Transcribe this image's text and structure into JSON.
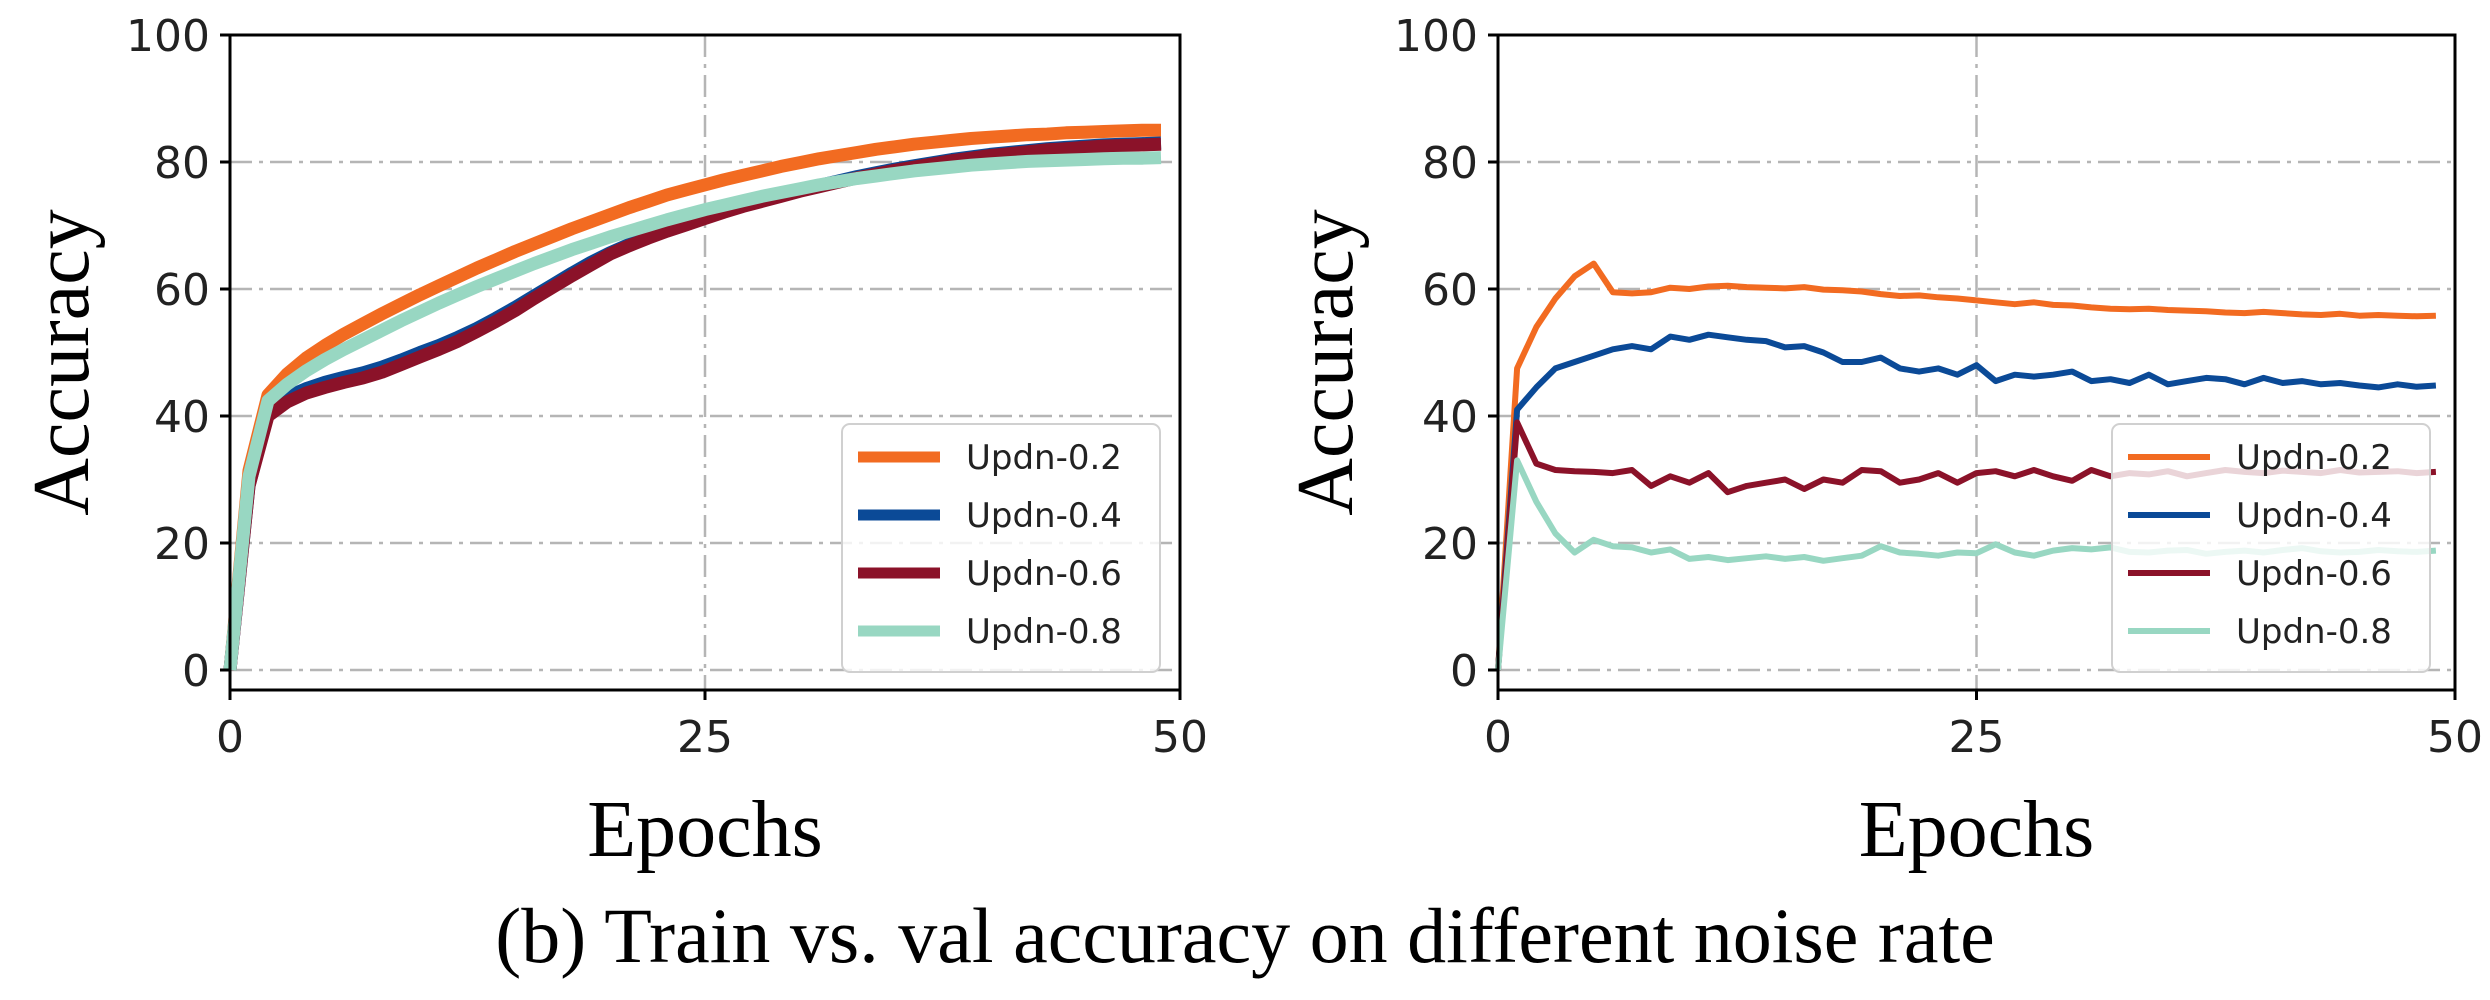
{
  "caption": "(b) Train vs. val accuracy on different noise rate",
  "chart_data": [
    {
      "type": "line",
      "xlabel": "Epochs",
      "ylabel": "Accuracy",
      "xlim": [
        0,
        50
      ],
      "ylim": [
        0,
        100
      ],
      "xticks": [
        "0",
        "25",
        "50"
      ],
      "yticks": [
        "0",
        "20",
        "40",
        "60",
        "80",
        "100"
      ],
      "grid": true,
      "legend_position": "lower-right",
      "x": [
        0,
        1,
        2,
        3,
        4,
        5,
        6,
        7,
        8,
        9,
        10,
        11,
        12,
        13,
        14,
        15,
        16,
        17,
        18,
        19,
        20,
        21,
        22,
        23,
        24,
        25,
        26,
        27,
        28,
        29,
        30,
        31,
        32,
        33,
        34,
        35,
        36,
        37,
        38,
        39,
        40,
        41,
        42,
        43,
        44,
        45,
        46,
        47,
        48,
        49
      ],
      "series": [
        {
          "name": "Updn-0.2",
          "color": "#f26b21",
          "values": [
            0,
            31.4,
            43.3,
            46.6,
            49.1,
            51.1,
            52.9,
            54.5,
            56.1,
            57.6,
            59.1,
            60.5,
            61.9,
            63.3,
            64.6,
            65.9,
            67.1,
            68.3,
            69.5,
            70.6,
            71.7,
            72.8,
            73.8,
            74.8,
            75.6,
            76.4,
            77.2,
            77.9,
            78.6,
            79.3,
            79.9,
            80.5,
            81.0,
            81.5,
            82.0,
            82.4,
            82.8,
            83.1,
            83.4,
            83.7,
            83.9,
            84.1,
            84.3,
            84.4,
            84.6,
            84.7,
            84.8,
            84.9,
            85.0,
            85.0
          ]
        },
        {
          "name": "Updn-0.4",
          "color": "#0b4a97",
          "values": [
            0,
            29.0,
            40.5,
            43.0,
            44.3,
            45.3,
            46.1,
            46.8,
            47.7,
            48.8,
            50.0,
            51.1,
            52.4,
            53.8,
            55.4,
            57.1,
            58.9,
            60.7,
            62.5,
            64.2,
            65.7,
            67.0,
            68.2,
            69.3,
            70.3,
            71.3,
            72.3,
            73.2,
            74.0,
            74.8,
            75.6,
            76.3,
            77.0,
            77.7,
            78.3,
            78.9,
            79.4,
            79.9,
            80.4,
            80.8,
            81.2,
            81.5,
            81.8,
            82.1,
            82.3,
            82.5,
            82.7,
            82.8,
            82.9,
            83.0
          ]
        },
        {
          "name": "Updn-0.6",
          "color": "#8b1229",
          "values": [
            0,
            29.0,
            40.0,
            42.2,
            43.6,
            44.5,
            45.3,
            46.0,
            46.9,
            48.1,
            49.3,
            50.5,
            51.8,
            53.3,
            54.9,
            56.6,
            58.5,
            60.3,
            62.1,
            63.8,
            65.5,
            66.8,
            68.0,
            69.1,
            70.1,
            71.1,
            72.1,
            73.0,
            73.8,
            74.6,
            75.4,
            76.1,
            76.8,
            77.5,
            78.1,
            78.7,
            79.2,
            79.7,
            80.2,
            80.6,
            81.0,
            81.3,
            81.6,
            81.9,
            82.1,
            82.3,
            82.5,
            82.6,
            82.7,
            82.8
          ]
        },
        {
          "name": "Updn-0.8",
          "color": "#98d7c2",
          "values": [
            0,
            30.5,
            42.4,
            45.0,
            47.1,
            48.9,
            50.5,
            52.0,
            53.5,
            55.0,
            56.4,
            57.8,
            59.1,
            60.4,
            61.6,
            62.8,
            64.0,
            65.1,
            66.2,
            67.2,
            68.2,
            69.1,
            70.0,
            70.9,
            71.7,
            72.5,
            73.2,
            73.9,
            74.6,
            75.2,
            75.8,
            76.4,
            76.9,
            77.4,
            77.8,
            78.2,
            78.6,
            78.9,
            79.2,
            79.5,
            79.7,
            79.9,
            80.1,
            80.2,
            80.3,
            80.4,
            80.5,
            80.6,
            80.6,
            80.7
          ]
        }
      ]
    },
    {
      "type": "line",
      "xlabel": "Epochs",
      "ylabel": "Accuracy",
      "xlim": [
        0,
        50
      ],
      "ylim": [
        0,
        100
      ],
      "xticks": [
        "0",
        "25",
        "50"
      ],
      "yticks": [
        "0",
        "20",
        "40",
        "60",
        "80",
        "100"
      ],
      "grid": true,
      "legend_position": "lower-right",
      "x": [
        0,
        1,
        2,
        3,
        4,
        5,
        6,
        7,
        8,
        9,
        10,
        11,
        12,
        13,
        14,
        15,
        16,
        17,
        18,
        19,
        20,
        21,
        22,
        23,
        24,
        25,
        26,
        27,
        28,
        29,
        30,
        31,
        32,
        33,
        34,
        35,
        36,
        37,
        38,
        39,
        40,
        41,
        42,
        43,
        44,
        45,
        46,
        47,
        48,
        49
      ],
      "series": [
        {
          "name": "Updn-0.2",
          "color": "#f26b21",
          "values": [
            0,
            47.5,
            54.0,
            58.5,
            62.0,
            64.0,
            59.5,
            59.3,
            59.5,
            60.2,
            60.0,
            60.4,
            60.5,
            60.3,
            60.2,
            60.1,
            60.3,
            59.9,
            59.8,
            59.6,
            59.2,
            58.9,
            59.0,
            58.7,
            58.5,
            58.2,
            57.9,
            57.6,
            57.9,
            57.5,
            57.4,
            57.1,
            56.9,
            56.8,
            56.9,
            56.7,
            56.6,
            56.5,
            56.3,
            56.2,
            56.4,
            56.2,
            56.0,
            55.9,
            56.1,
            55.8,
            55.9,
            55.8,
            55.7,
            55.8
          ]
        },
        {
          "name": "Updn-0.4",
          "color": "#0b4a97",
          "values": [
            0,
            41.0,
            44.5,
            47.5,
            48.5,
            49.5,
            50.5,
            51.0,
            50.5,
            52.5,
            52.0,
            52.8,
            52.4,
            52.0,
            51.8,
            50.8,
            51.0,
            50.0,
            48.5,
            48.5,
            49.2,
            47.5,
            47.0,
            47.5,
            46.5,
            48.0,
            45.5,
            46.5,
            46.2,
            46.5,
            47.0,
            45.5,
            45.8,
            45.2,
            46.5,
            45.0,
            45.5,
            46.0,
            45.8,
            45.0,
            46.0,
            45.2,
            45.5,
            45.0,
            45.2,
            44.8,
            44.5,
            45.0,
            44.6,
            44.8
          ]
        },
        {
          "name": "Updn-0.6",
          "color": "#8b1229",
          "values": [
            0,
            39.0,
            32.5,
            31.5,
            31.3,
            31.2,
            31.0,
            31.5,
            29.0,
            30.5,
            29.5,
            31.0,
            28.0,
            29.0,
            29.5,
            30.0,
            28.5,
            30.0,
            29.5,
            31.5,
            31.3,
            29.5,
            30.0,
            31.0,
            29.5,
            31.0,
            31.3,
            30.5,
            31.5,
            30.5,
            29.8,
            31.5,
            30.5,
            31.0,
            30.8,
            31.3,
            30.5,
            31.0,
            31.5,
            31.2,
            31.0,
            31.4,
            31.2,
            31.0,
            31.5,
            31.1,
            31.2,
            31.3,
            31.0,
            31.2
          ]
        },
        {
          "name": "Updn-0.8",
          "color": "#98d7c2",
          "values": [
            0,
            33.0,
            26.5,
            21.5,
            18.5,
            20.5,
            19.5,
            19.3,
            18.5,
            19.0,
            17.5,
            17.8,
            17.3,
            17.6,
            17.9,
            17.5,
            17.8,
            17.2,
            17.6,
            18.0,
            19.5,
            18.5,
            18.3,
            18.0,
            18.5,
            18.4,
            19.8,
            18.5,
            18.0,
            18.8,
            19.2,
            19.0,
            19.3,
            18.6,
            18.5,
            18.8,
            18.9,
            18.3,
            18.6,
            18.8,
            18.5,
            18.9,
            19.2,
            18.7,
            18.5,
            18.6,
            18.9,
            18.7,
            18.6,
            18.8
          ]
        }
      ]
    }
  ]
}
